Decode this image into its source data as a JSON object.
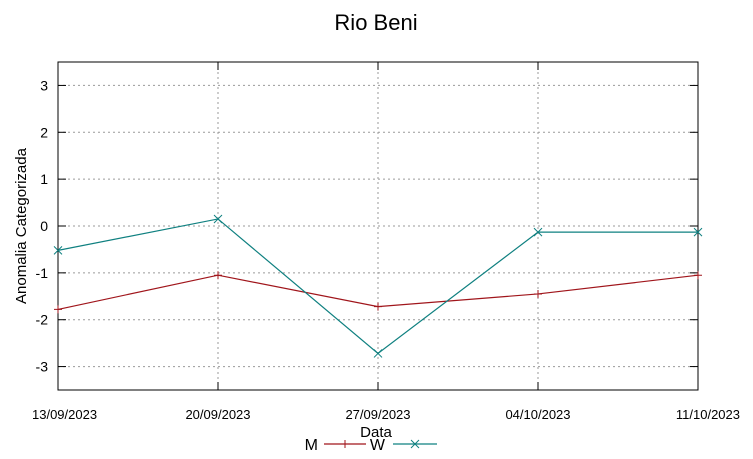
{
  "chart_data": {
    "type": "line",
    "title": "Rio Beni",
    "xlabel": "Data",
    "ylabel": "Anomalia Categorizada",
    "categories": [
      "13/09/2023",
      "20/09/2023",
      "27/09/2023",
      "04/10/2023",
      "11/10/2023"
    ],
    "ylim": [
      -3.5,
      3.5
    ],
    "yticks": [
      3,
      2,
      1,
      0,
      -1,
      -2,
      -3
    ],
    "grid": true,
    "legend_position": "bottom-center",
    "series": [
      {
        "name": "M",
        "color": "#a0151b",
        "marker": "plus",
        "values": [
          -1.78,
          -1.05,
          -1.72,
          -1.45,
          -1.05
        ]
      },
      {
        "name": "W",
        "color": "#0f8080",
        "marker": "x",
        "values": [
          -0.52,
          0.15,
          -2.72,
          -0.13,
          -0.13
        ]
      }
    ]
  }
}
